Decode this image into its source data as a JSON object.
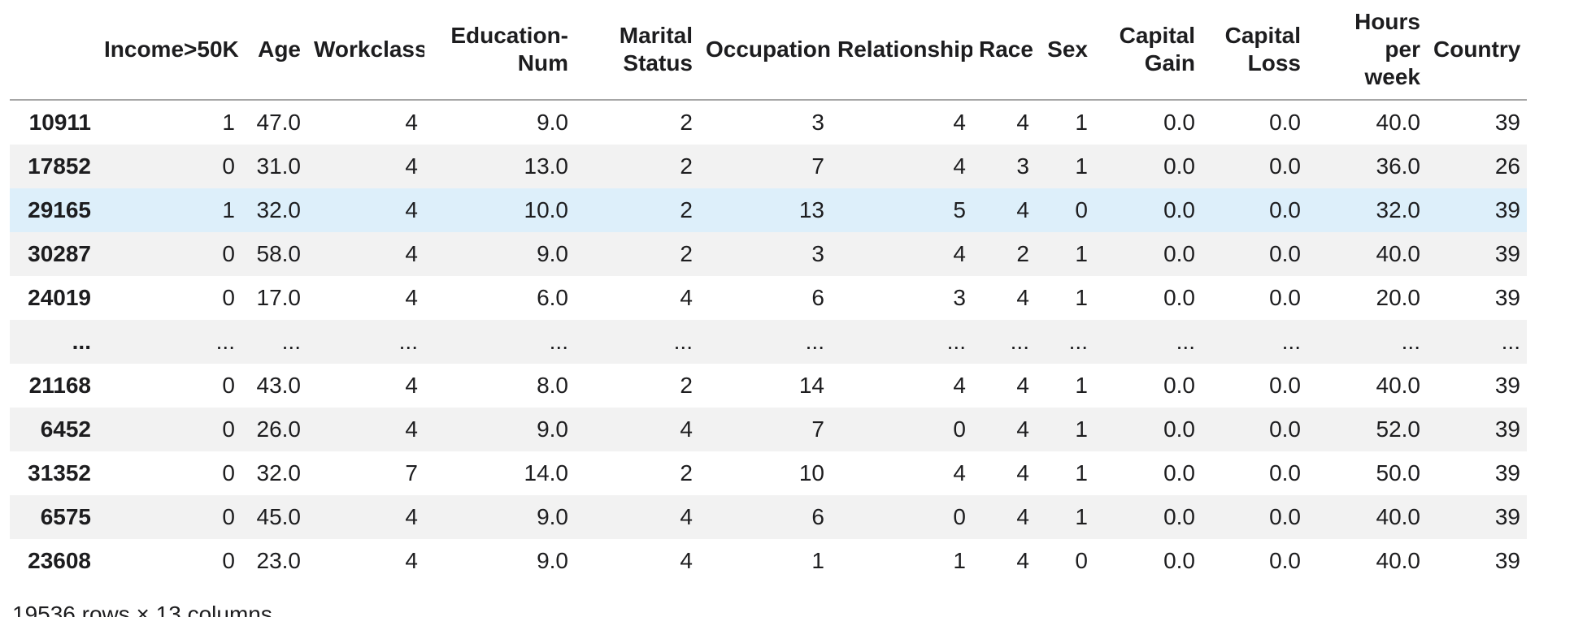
{
  "table": {
    "index_header": "",
    "columns": [
      "Income>50K",
      "Age",
      "Workclass",
      "Education-\nNum",
      "Marital\nStatus",
      "Occupation",
      "Relationship",
      "Race",
      "Sex",
      "Capital\nGain",
      "Capital\nLoss",
      "Hours per\nweek",
      "Country"
    ],
    "rows": [
      {
        "index": "10911",
        "cells": [
          "1",
          "47.0",
          "4",
          "9.0",
          "2",
          "3",
          "4",
          "4",
          "1",
          "0.0",
          "0.0",
          "40.0",
          "39"
        ]
      },
      {
        "index": "17852",
        "cells": [
          "0",
          "31.0",
          "4",
          "13.0",
          "2",
          "7",
          "4",
          "3",
          "1",
          "0.0",
          "0.0",
          "36.0",
          "26"
        ]
      },
      {
        "index": "29165",
        "cells": [
          "1",
          "32.0",
          "4",
          "10.0",
          "2",
          "13",
          "5",
          "4",
          "0",
          "0.0",
          "0.0",
          "32.0",
          "39"
        ]
      },
      {
        "index": "30287",
        "cells": [
          "0",
          "58.0",
          "4",
          "9.0",
          "2",
          "3",
          "4",
          "2",
          "1",
          "0.0",
          "0.0",
          "40.0",
          "39"
        ]
      },
      {
        "index": "24019",
        "cells": [
          "0",
          "17.0",
          "4",
          "6.0",
          "4",
          "6",
          "3",
          "4",
          "1",
          "0.0",
          "0.0",
          "20.0",
          "39"
        ]
      },
      {
        "index": "...",
        "cells": [
          "...",
          "...",
          "...",
          "...",
          "...",
          "...",
          "...",
          "...",
          "...",
          "...",
          "...",
          "...",
          "..."
        ]
      },
      {
        "index": "21168",
        "cells": [
          "0",
          "43.0",
          "4",
          "8.0",
          "2",
          "14",
          "4",
          "4",
          "1",
          "0.0",
          "0.0",
          "40.0",
          "39"
        ]
      },
      {
        "index": "6452",
        "cells": [
          "0",
          "26.0",
          "4",
          "9.0",
          "4",
          "7",
          "0",
          "4",
          "1",
          "0.0",
          "0.0",
          "52.0",
          "39"
        ]
      },
      {
        "index": "31352",
        "cells": [
          "0",
          "32.0",
          "7",
          "14.0",
          "2",
          "10",
          "4",
          "4",
          "1",
          "0.0",
          "0.0",
          "50.0",
          "39"
        ]
      },
      {
        "index": "6575",
        "cells": [
          "0",
          "45.0",
          "4",
          "9.0",
          "4",
          "6",
          "0",
          "4",
          "1",
          "0.0",
          "0.0",
          "40.0",
          "39"
        ]
      },
      {
        "index": "23608",
        "cells": [
          "0",
          "23.0",
          "4",
          "9.0",
          "4",
          "1",
          "1",
          "4",
          "0",
          "0.0",
          "0.0",
          "40.0",
          "39"
        ]
      }
    ],
    "highlighted_row_index": 2
  },
  "footer": {
    "summary": "19536 rows × 13 columns"
  },
  "colors": {
    "text": "#1d1d1f",
    "stripe": "#f2f2f2",
    "highlight": "#ddeffa",
    "header_border": "#a6a6a6",
    "background": "#ffffff"
  }
}
